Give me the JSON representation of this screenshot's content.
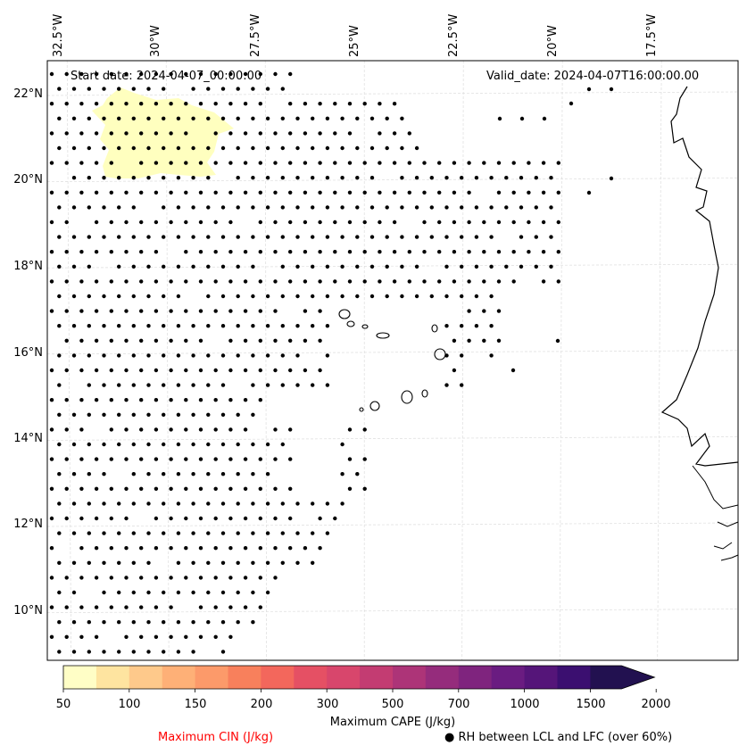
{
  "map": {
    "start_date": "Start date: 2024-04-07_00:00:00",
    "valid_date": "Valid_date: 2024-04-07T16:00:00.00",
    "lon_labels": [
      "32.5°W",
      "30°W",
      "27.5°W",
      "25°W",
      "22.5°W",
      "20°W",
      "17.5°W"
    ],
    "lat_labels": [
      "22°N",
      "20°N",
      "18°N",
      "16°N",
      "14°N",
      "12°N",
      "10°N"
    ],
    "extent": {
      "lon_min": -33,
      "lon_max": -16.5,
      "lat_min": 9,
      "lat_max": 22.8
    },
    "fill_color": "#ffffbf",
    "dot_color": "#000000"
  },
  "colorbar": {
    "title": "Maximum CAPE (J/kg)",
    "tick_labels": [
      "50",
      "100",
      "150",
      "200",
      "300",
      "500",
      "700",
      "1000",
      "1500",
      "2000"
    ],
    "colors": [
      "#fffec6",
      "#fee4a0",
      "#fec98b",
      "#feb077",
      "#fc9a6a",
      "#f8805c",
      "#f3675c",
      "#e55064",
      "#d8466c",
      "#c33c72",
      "#ad3478",
      "#952c7c",
      "#7f247e",
      "#6a1c81",
      "#551579",
      "#3b0f70",
      "#221150"
    ]
  },
  "legend": {
    "cin_label": "Maximum CIN (J/kg)",
    "cin_color": "#ff0000",
    "rh_label": "RH between LCL and LFC (over 60%)",
    "rh_marker": "●"
  }
}
